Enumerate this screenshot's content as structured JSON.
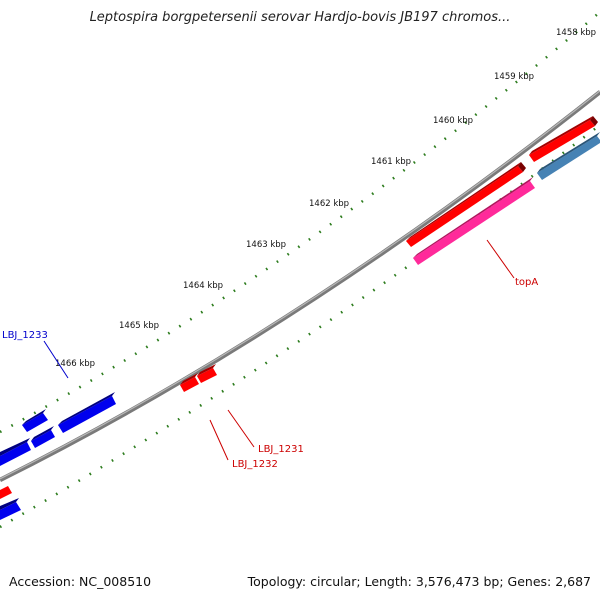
{
  "title": "Leptospira borgpetersenii serovar Hardjo-bovis JB197 chromos...",
  "footer": {
    "accession": "Accession: NC_008510",
    "stats": "Topology: circular; Length: 3,576,473 bp; Genes: 2,687"
  },
  "colors": {
    "backbone": "#808080",
    "tick": "#2e7d1f",
    "forward_gene": "#ff0000",
    "reverse_gene": "#0000ee",
    "pink_gene": "#ff2a9a",
    "steel_gene": "#4682b4",
    "label_red": "#cc0000",
    "label_blue": "#0000cc"
  },
  "kbp_labels": [
    "1458 kbp",
    "1459 kbp",
    "1460 kbp",
    "1461 kbp",
    "1462 kbp",
    "1463 kbp",
    "1464 kbp",
    "1465 kbp",
    "1466 kbp"
  ],
  "gene_labels": [
    {
      "text": "topA",
      "color": "red"
    },
    {
      "text": "LBJ_1231",
      "color": "red"
    },
    {
      "text": "LBJ_1232",
      "color": "red"
    },
    {
      "text": "LBJ_1233",
      "color": "blue"
    }
  ]
}
